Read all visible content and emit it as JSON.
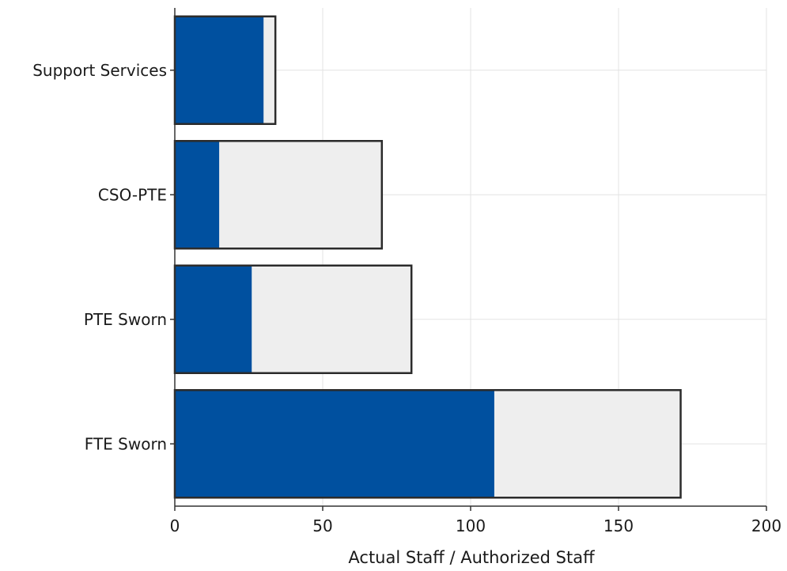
{
  "chart_data": {
    "type": "bar",
    "orientation": "horizontal",
    "categories": [
      "Support Services",
      "CSO-PTE",
      "PTE Sworn",
      "FTE Sworn"
    ],
    "series": [
      {
        "name": "",
        "role": "authorized",
        "values": [
          34,
          70,
          80,
          171
        ]
      },
      {
        "name": "",
        "role": "actual",
        "values": [
          30,
          15,
          26,
          108
        ]
      }
    ],
    "xlabel": "Actual Staff / Authorized Staff",
    "ylabel": "",
    "title": "",
    "xlim": [
      0,
      200
    ],
    "xticks": [
      0,
      50,
      100,
      150,
      200
    ],
    "grid": true,
    "legend": "none",
    "colors": {
      "actual": "#00509f",
      "authorized_fill": "#eeeeee",
      "authorized_border": "#2b2b2b",
      "grid": "#e3e3e3",
      "axis": "#333333"
    }
  }
}
